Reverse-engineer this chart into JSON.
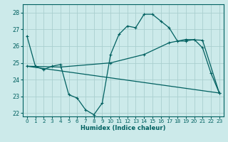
{
  "xlabel": "Humidex (Indice chaleur)",
  "background_color": "#cceaea",
  "grid_color": "#aacfcf",
  "line_color": "#006060",
  "xlim": [
    -0.5,
    23.5
  ],
  "ylim": [
    21.8,
    28.5
  ],
  "yticks": [
    22,
    23,
    24,
    25,
    26,
    27,
    28
  ],
  "xticks": [
    0,
    1,
    2,
    3,
    4,
    5,
    6,
    7,
    8,
    9,
    10,
    11,
    12,
    13,
    14,
    15,
    16,
    17,
    18,
    19,
    20,
    21,
    22,
    23
  ],
  "series1_x": [
    0,
    1,
    2,
    3,
    4,
    5,
    6,
    7,
    8,
    9,
    10,
    11,
    12,
    13,
    14,
    15,
    16,
    17,
    18,
    19,
    20,
    21,
    22,
    23
  ],
  "series1_y": [
    26.6,
    24.8,
    24.6,
    24.8,
    24.9,
    23.1,
    22.9,
    22.2,
    21.9,
    22.6,
    25.5,
    26.7,
    27.2,
    27.1,
    27.9,
    27.9,
    27.5,
    27.1,
    26.3,
    26.3,
    26.4,
    25.9,
    24.4,
    23.2
  ],
  "series2_x": [
    0,
    4,
    10,
    14,
    17,
    19,
    21,
    23
  ],
  "series2_y": [
    24.8,
    24.75,
    25.0,
    25.5,
    26.2,
    26.4,
    26.35,
    23.2
  ],
  "series3_x": [
    0,
    23
  ],
  "series3_y": [
    24.8,
    23.2
  ]
}
